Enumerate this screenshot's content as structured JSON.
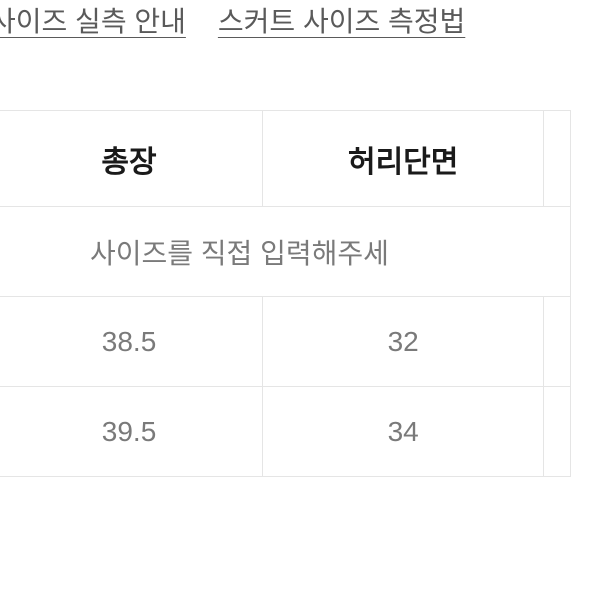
{
  "header": {
    "link1": "사이즈 실측 안내",
    "link2": "스커트 사이즈 측정법"
  },
  "table": {
    "type": "table",
    "columns": [
      "총장",
      "허리단면"
    ],
    "prompt_text": "사이즈를 직접 입력해주세",
    "rows": [
      [
        "38.5",
        "32"
      ],
      [
        "39.5",
        "34"
      ]
    ],
    "header_fontsize": 30,
    "cell_fontsize": 28,
    "border_color": "#e5e5e5",
    "header_text_color": "#1a1a1a",
    "cell_text_color": "#7a7a7a",
    "background_color": "#ffffff"
  }
}
